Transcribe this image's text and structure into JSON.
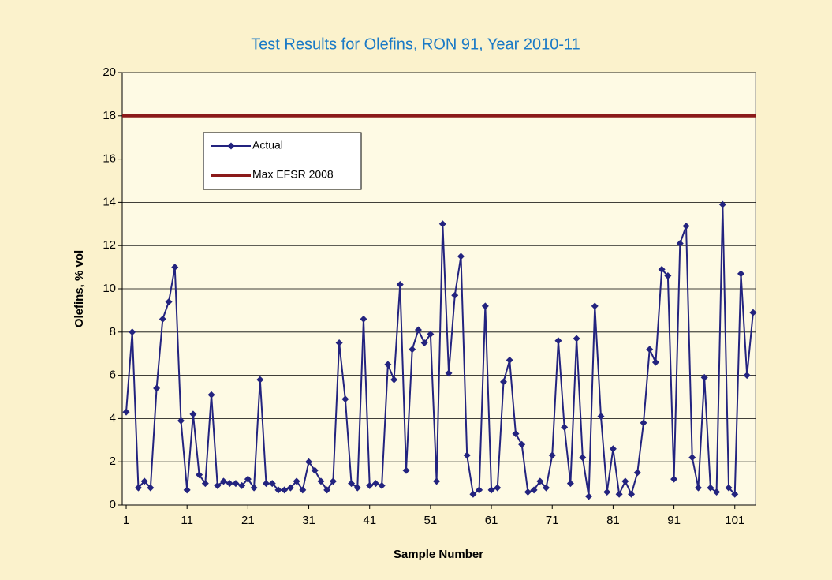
{
  "chart_data": {
    "type": "line",
    "title": "Test Results for Olefins, RON 91, Year 2010-11",
    "x_label": "Sample Number",
    "y_label": "Olefins, % vol",
    "x": [
      1,
      2,
      3,
      4,
      5,
      6,
      7,
      8,
      9,
      10,
      11,
      12,
      13,
      14,
      15,
      16,
      17,
      18,
      19,
      20,
      21,
      22,
      23,
      24,
      25,
      26,
      27,
      28,
      29,
      30,
      31,
      32,
      33,
      34,
      35,
      36,
      37,
      38,
      39,
      40,
      41,
      42,
      43,
      44,
      45,
      46,
      47,
      48,
      49,
      50,
      51,
      52,
      53,
      54,
      55,
      56,
      57,
      58,
      59,
      60,
      61,
      62,
      63,
      64,
      65,
      66,
      67,
      68,
      69,
      70,
      71,
      72,
      73,
      74,
      75,
      76,
      77,
      78,
      79,
      80,
      81,
      82,
      83,
      84,
      85,
      86,
      87,
      88,
      89,
      90,
      91,
      92,
      93,
      94,
      95,
      96,
      97,
      98,
      99,
      100,
      101,
      102,
      103,
      104
    ],
    "series": [
      {
        "name": "Actual",
        "color": "#23237f",
        "values": [
          4.3,
          8.0,
          0.8,
          1.1,
          0.8,
          5.4,
          8.6,
          9.4,
          11.0,
          3.9,
          0.7,
          4.2,
          1.4,
          1.0,
          5.1,
          0.9,
          1.1,
          1.0,
          1.0,
          0.9,
          1.2,
          0.8,
          5.8,
          1.0,
          1.0,
          0.7,
          0.7,
          0.8,
          1.1,
          0.7,
          2.0,
          1.6,
          1.1,
          0.7,
          1.1,
          7.5,
          4.9,
          1.0,
          0.8,
          8.6,
          0.9,
          1.0,
          0.9,
          6.5,
          5.8,
          10.2,
          1.6,
          7.2,
          8.1,
          7.5,
          7.9,
          1.1,
          13.0,
          6.1,
          9.7,
          11.5,
          2.3,
          0.5,
          0.7,
          9.2,
          0.7,
          0.8,
          5.7,
          6.7,
          3.3,
          2.8,
          0.6,
          0.7,
          1.1,
          0.8,
          2.3,
          7.6,
          3.6,
          1.0,
          7.7,
          2.2,
          0.4,
          9.2,
          4.1,
          0.6,
          2.6,
          0.5,
          1.1,
          0.5,
          1.5,
          3.8,
          7.2,
          6.6,
          10.9,
          10.6,
          1.2,
          12.1,
          12.9,
          2.2,
          0.8,
          5.9,
          0.8,
          0.6,
          13.9,
          0.8,
          0.5,
          10.7,
          6.0,
          8.9
        ]
      }
    ],
    "reference_line": {
      "name": "Max EFSR 2008",
      "value": 18,
      "color": "#8b1a1a"
    },
    "xlim": [
      0.35,
      104.4
    ],
    "xticks": [
      1,
      11,
      21,
      31,
      41,
      51,
      61,
      71,
      81,
      91,
      101
    ],
    "ylim": [
      0,
      20
    ],
    "yticks": [
      0,
      2,
      4,
      6,
      8,
      10,
      12,
      14,
      16,
      18,
      20
    ],
    "grid": true
  }
}
